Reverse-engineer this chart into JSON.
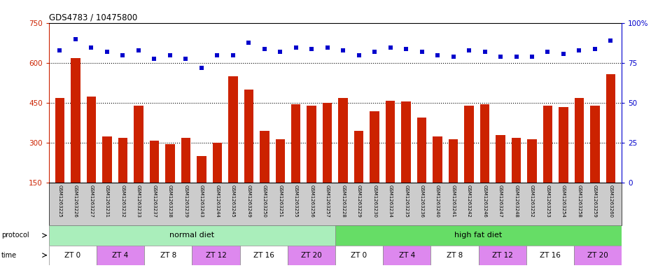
{
  "title": "GDS4783 / 10475800",
  "samples": [
    "GSM1263225",
    "GSM1263226",
    "GSM1263227",
    "GSM1263231",
    "GSM1263232",
    "GSM1263233",
    "GSM1263237",
    "GSM1263238",
    "GSM1263239",
    "GSM1263243",
    "GSM1263244",
    "GSM1263245",
    "GSM1263249",
    "GSM1263250",
    "GSM1263251",
    "GSM1263255",
    "GSM1263256",
    "GSM1263257",
    "GSM1263228",
    "GSM1263229",
    "GSM1263230",
    "GSM1263234",
    "GSM1263235",
    "GSM1263236",
    "GSM1263240",
    "GSM1263241",
    "GSM1263242",
    "GSM1263246",
    "GSM1263247",
    "GSM1263248",
    "GSM1263252",
    "GSM1263253",
    "GSM1263254",
    "GSM1263258",
    "GSM1263259",
    "GSM1263260"
  ],
  "counts": [
    470,
    620,
    475,
    325,
    320,
    440,
    310,
    295,
    320,
    250,
    300,
    550,
    500,
    345,
    315,
    445,
    440,
    450,
    470,
    345,
    420,
    460,
    455,
    395,
    325,
    315,
    440,
    445,
    330,
    320,
    315,
    440,
    435,
    470,
    440,
    560
  ],
  "percentiles": [
    83,
    90,
    85,
    82,
    80,
    83,
    78,
    80,
    78,
    72,
    80,
    80,
    88,
    84,
    82,
    85,
    84,
    85,
    83,
    80,
    82,
    85,
    84,
    82,
    80,
    79,
    83,
    82,
    79,
    79,
    79,
    82,
    81,
    83,
    84,
    89
  ],
  "bar_color": "#cc2200",
  "dot_color": "#0000cc",
  "ylim_left": [
    150,
    750
  ],
  "ylim_right": [
    0,
    100
  ],
  "yticks_left": [
    150,
    300,
    450,
    600,
    750
  ],
  "yticks_right": [
    0,
    25,
    50,
    75,
    100
  ],
  "ytick_labels_right": [
    "0",
    "25",
    "50",
    "75",
    "100%"
  ],
  "grid_values": [
    300,
    450,
    600
  ],
  "protocol_colors": [
    "#aaeebb",
    "#66dd66"
  ],
  "time_labels": [
    "ZT 0",
    "ZT 4",
    "ZT 8",
    "ZT 12",
    "ZT 16",
    "ZT 20",
    "ZT 0",
    "ZT 4",
    "ZT 8",
    "ZT 12",
    "ZT 16",
    "ZT 20"
  ],
  "time_colors": [
    "#ffffff",
    "#dd88ee",
    "#ffffff",
    "#dd88ee",
    "#ffffff",
    "#dd88ee",
    "#ffffff",
    "#dd88ee",
    "#ffffff",
    "#dd88ee",
    "#ffffff",
    "#dd88ee"
  ],
  "n_samples": 36,
  "n_per_group": 18,
  "samples_per_time": 3,
  "xtick_bg_color": "#cccccc"
}
